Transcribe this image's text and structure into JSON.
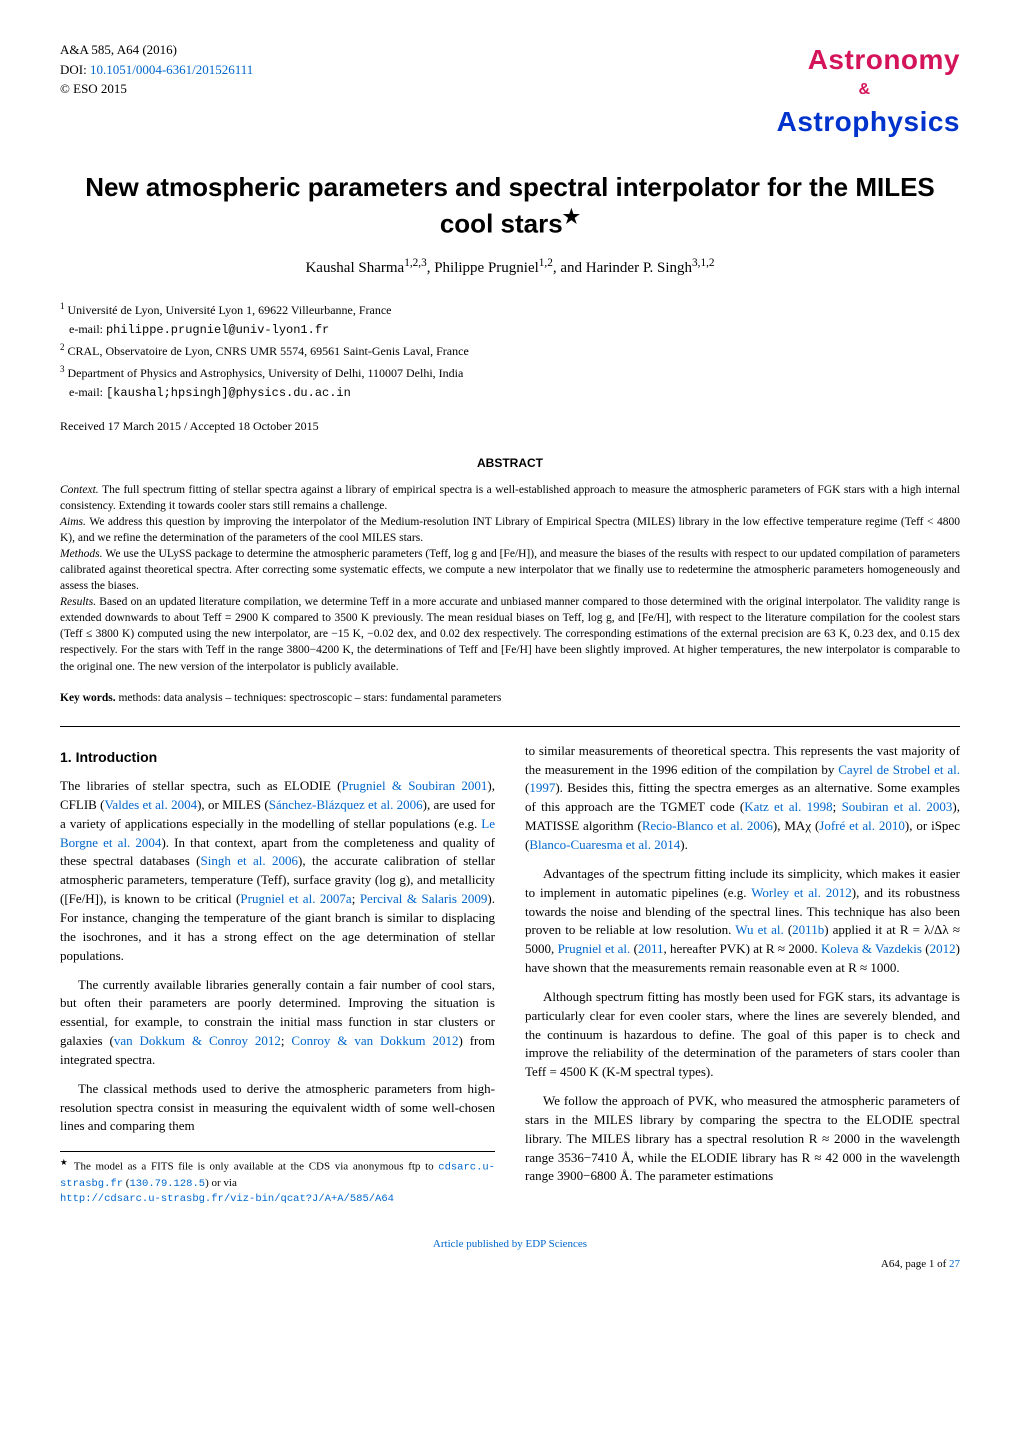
{
  "header": {
    "journal_ref": "A&A 585, A64 (2016)",
    "doi_prefix": "DOI: ",
    "doi_link": "10.1051/0004-6361/201526111",
    "copyright": "© ESO 2015",
    "logo_top": "Astronomy",
    "logo_amp": "&",
    "logo_bottom": "Astrophysics",
    "logo_colors": {
      "astronomy": "#d4145a",
      "astrophysics": "#0033cc"
    }
  },
  "title": "New atmospheric parameters and spectral interpolator for the MILES cool stars",
  "title_star": "★",
  "authors": "Kaushal Sharma",
  "authors_sup1": "1,2,3",
  "authors_mid": ", Philippe Prugniel",
  "authors_sup2": "1,2",
  "authors_end": ", and Harinder P. Singh",
  "authors_sup3": "3,1,2",
  "affiliations": {
    "a1_num": "1",
    "a1_text": "Université de Lyon, Université Lyon 1, 69622 Villeurbanne, France",
    "a1_email_label": "e-mail: ",
    "a1_email": "philippe.prugniel@univ-lyon1.fr",
    "a2_num": "2",
    "a2_text": "CRAL, Observatoire de Lyon, CNRS UMR 5574, 69561 Saint-Genis Laval, France",
    "a3_num": "3",
    "a3_text": "Department of Physics and Astrophysics, University of Delhi, 110007 Delhi, India",
    "a3_email_label": "e-mail: ",
    "a3_email": "[kaushal;hpsingh]@physics.du.ac.in"
  },
  "dates": "Received 17 March 2015 / Accepted 18 October 2015",
  "abstract_heading": "ABSTRACT",
  "abstract": {
    "context_label": "Context. ",
    "context": "The full spectrum fitting of stellar spectra against a library of empirical spectra is a well-established approach to measure the atmospheric parameters of FGK stars with a high internal consistency. Extending it towards cooler stars still remains a challenge.",
    "aims_label": "Aims. ",
    "aims": "We address this question by improving the interpolator of the Medium-resolution INT Library of Empirical Spectra (MILES) library in the low effective temperature regime (Teff < 4800 K), and we refine the determination of the parameters of the cool MILES stars.",
    "methods_label": "Methods. ",
    "methods": "We use the ULySS package to determine the atmospheric parameters (Teff, log g and [Fe/H]), and measure the biases of the results with respect to our updated compilation of parameters calibrated against theoretical spectra. After correcting some systematic effects, we compute a new interpolator that we finally use to redetermine the atmospheric parameters homogeneously and assess the biases.",
    "results_label": "Results. ",
    "results": "Based on an updated literature compilation, we determine Teff in a more accurate and unbiased manner compared to those determined with the original interpolator. The validity range is extended downwards to about Teff = 2900 K compared to 3500 K previously. The mean residual biases on Teff, log g, and [Fe/H], with respect to the literature compilation for the coolest stars (Teff ≤ 3800 K) computed using the new interpolator, are −15 K, −0.02 dex, and 0.02 dex respectively. The corresponding estimations of the external precision are 63 K, 0.23 dex, and 0.15 dex respectively. For the stars with Teff in the range 3800−4200 K, the determinations of Teff and [Fe/H] have been slightly improved. At higher temperatures, the new interpolator is comparable to the original one. The new version of the interpolator is publicly available."
  },
  "keywords_label": "Key words. ",
  "keywords": "methods: data analysis – techniques: spectroscopic – stars: fundamental parameters",
  "section1_heading": "1. Introduction",
  "col_left": {
    "p1a": "The libraries of stellar spectra, such as ELODIE (",
    "p1_cite1": "Prugniel & Soubiran 2001",
    "p1b": "), CFLIB (",
    "p1_cite2": "Valdes et al. 2004",
    "p1c": "), or MILES (",
    "p1_cite3": "Sánchez-Blázquez et al. 2006",
    "p1d": "), are used for a variety of applications especially in the modelling of stellar populations (e.g. ",
    "p1_cite4": "Le Borgne et al. 2004",
    "p1e": "). In that context, apart from the completeness and quality of these spectral databases (",
    "p1_cite5": "Singh et al. 2006",
    "p1f": "), the accurate calibration of stellar atmospheric parameters, temperature (Teff), surface gravity (log g), and metallicity ([Fe/H]), is known to be critical (",
    "p1_cite6": "Prugniel et al. 2007a",
    "p1g": "; ",
    "p1_cite7": "Percival & Salaris 2009",
    "p1h": "). For instance, changing the temperature of the giant branch is similar to displacing the isochrones, and it has a strong effect on the age determination of stellar populations.",
    "p2a": "The currently available libraries generally contain a fair number of cool stars, but often their parameters are poorly determined. Improving the situation is essential, for example, to constrain the initial mass function in star clusters or galaxies (",
    "p2_cite1": "van Dokkum & Conroy 2012",
    "p2b": "; ",
    "p2_cite2": "Conroy & van Dokkum 2012",
    "p2c": ") from integrated spectra.",
    "p3": "The classical methods used to derive the atmospheric parameters from high-resolution spectra consist in measuring the equivalent width of some well-chosen lines and comparing them"
  },
  "col_right": {
    "p1a": "to similar measurements of theoretical spectra. This represents the vast majority of the measurement in the 1996 edition of the compilation by ",
    "p1_cite1": "Cayrel de Strobel et al.",
    "p1b": " (",
    "p1_cite1y": "1997",
    "p1c": "). Besides this, fitting the spectra emerges as an alternative. Some examples of this approach are the TGMET code (",
    "p1_cite2": "Katz et al. 1998",
    "p1d": "; ",
    "p1_cite3": "Soubiran et al. 2003",
    "p1e": "), MATISSE algorithm (",
    "p1_cite4": "Recio-Blanco et al. 2006",
    "p1f": "), MAχ (",
    "p1_cite5": "Jofré et al. 2010",
    "p1g": "), or iSpec (",
    "p1_cite6": "Blanco-Cuaresma et al. 2014",
    "p1h": ").",
    "p2a": "Advantages of the spectrum fitting include its simplicity, which makes it easier to implement in automatic pipelines (e.g. ",
    "p2_cite1": "Worley et al. 2012",
    "p2b": "), and its robustness towards the noise and blending of the spectral lines. This technique has also been proven to be reliable at low resolution. ",
    "p2_cite2": "Wu et al.",
    "p2c": " (",
    "p2_cite2y": "2011b",
    "p2d": ") applied it at R = λ/Δλ ≈ 5000, ",
    "p2_cite3": "Prugniel et al.",
    "p2e": " (",
    "p2_cite3y": "2011",
    "p2f": ", hereafter PVK) at R ≈ 2000. ",
    "p2_cite4": "Koleva & Vazdekis",
    "p2g": " (",
    "p2_cite4y": "2012",
    "p2h": ") have shown that the measurements remain reasonable even at R ≈ 1000.",
    "p3": "Although spectrum fitting has mostly been used for FGK stars, its advantage is particularly clear for even cooler stars, where the lines are severely blended, and the continuum is hazardous to define. The goal of this paper is to check and improve the reliability of the determination of the parameters of stars cooler than Teff = 4500 K (K-M spectral types).",
    "p4": "We follow the approach of PVK, who measured the atmospheric parameters of stars in the MILES library by comparing the spectra to the ELODIE spectral library. The MILES library has a spectral resolution R ≈ 2000 in the wavelength range 3536−7410 Å, while the ELODIE library has R ≈ 42 000 in the wavelength range 3900−6800 Å. The parameter estimations"
  },
  "footnote": {
    "star": "★",
    "text1": " The model as a FITS file is only available at the CDS via anonymous ftp to ",
    "link1": "cdsarc.u-strasbg.fr",
    "text2": " (",
    "link2": "130.79.128.5",
    "text3": ") or via ",
    "link3": "http://cdsarc.u-strasbg.fr/viz-bin/qcat?J/A+A/585/A64"
  },
  "footer": {
    "pub_link": "Article published by EDP Sciences",
    "page_num": "A64, page 1 of ",
    "page_total": "27"
  }
}
